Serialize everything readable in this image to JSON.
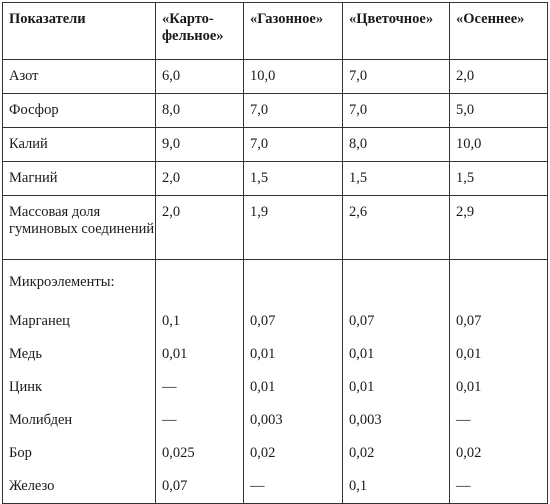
{
  "header": [
    "Показатели",
    "«Карто-фельное»",
    "«Газонное»",
    "«Цветочное»",
    "«Осеннее»"
  ],
  "rows": [
    [
      "Азот",
      "6,0",
      "10,0",
      "7,0",
      "2,0"
    ],
    [
      "Фосфор",
      "8,0",
      "7,0",
      "7,0",
      "5,0"
    ],
    [
      "Калий",
      "9,0",
      "7,0",
      "8,0",
      "10,0"
    ],
    [
      "Магний",
      "2,0",
      "1,5",
      "1,5",
      "1,5"
    ],
    [
      "Массовая доля гуминовых соединений",
      "2,0",
      "1,9",
      "2,6",
      "2,9"
    ]
  ],
  "micro_title": "Микроэлементы:",
  "micro_rows": [
    [
      "Марганец",
      "0,1",
      "0,07",
      "0,07",
      "0,07"
    ],
    [
      "Медь",
      "0,01",
      "0,01",
      "0,01",
      "0,01"
    ],
    [
      "Цинк",
      "—",
      "0,01",
      "0,01",
      "0,01"
    ],
    [
      "Молибден",
      "—",
      "0,003",
      "0,003",
      "—"
    ],
    [
      "Бор",
      "0,025",
      "0,02",
      "0,02",
      "0,02"
    ],
    [
      "Железо",
      "0,07",
      "—",
      "0,1",
      "—"
    ]
  ]
}
